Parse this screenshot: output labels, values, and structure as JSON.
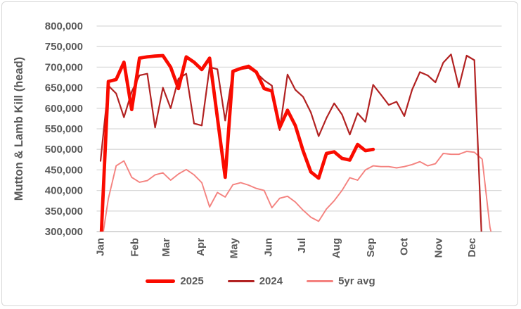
{
  "chart_data": {
    "type": "line",
    "title": "",
    "ylabel": "Mutton & Lamb Kill  (head)",
    "ylim": [
      300000,
      800000
    ],
    "y_tick_step": 50000,
    "y_tick_labels": [
      "800,000",
      "750,000",
      "700,000",
      "650,000",
      "600,000",
      "550,000",
      "500,000",
      "450,000",
      "400,000",
      "350,000",
      "300,000"
    ],
    "x_unit": "week-of-year",
    "x_month_labels": [
      "Jan",
      "Feb",
      "Mar",
      "Apr",
      "May",
      "Jun",
      "Jul",
      "Aug",
      "Sep",
      "Oct",
      "Nov",
      "Dec"
    ],
    "grid": "horizontal-only",
    "legend_position": "bottom",
    "axis_text_color": "#595959",
    "gridline_color": "#d9d9d9",
    "series": [
      {
        "name": "2025",
        "color": "#fa0b00",
        "stroke_width": 4.8,
        "start_week": 1,
        "values": [
          255000,
          665000,
          670000,
          712000,
          597000,
          722000,
          725000,
          727000,
          728000,
          700000,
          648000,
          725000,
          712000,
          694000,
          722000,
          577000,
          432000,
          690000,
          697000,
          702000,
          688000,
          648000,
          642000,
          553000,
          595000,
          558000,
          497000,
          445000,
          430000,
          490000,
          494000,
          478000,
          474000,
          512000,
          497000,
          500000
        ]
      },
      {
        "name": "2024",
        "color": "#b22222",
        "stroke_width": 2.2,
        "start_week": 1,
        "values": [
          472000,
          655000,
          636000,
          578000,
          640000,
          680000,
          684000,
          553000,
          650000,
          600000,
          672000,
          684000,
          563000,
          558000,
          700000,
          695000,
          570000,
          690000,
          695000,
          698000,
          686000,
          668000,
          655000,
          547000,
          682000,
          645000,
          628000,
          590000,
          532000,
          576000,
          612000,
          585000,
          536000,
          588000,
          567000,
          657000,
          633000,
          608000,
          616000,
          581000,
          645000,
          688000,
          680000,
          663000,
          711000,
          731000,
          651000,
          728000,
          717000,
          255000
        ]
      },
      {
        "name": "5yr avg",
        "color": "#f4827f",
        "stroke_width": 1.9,
        "start_week": 1,
        "values": [
          255000,
          380000,
          460000,
          472000,
          432000,
          420000,
          424000,
          438000,
          443000,
          425000,
          440000,
          451000,
          438000,
          419000,
          360000,
          395000,
          384000,
          414000,
          419000,
          413000,
          405000,
          400000,
          358000,
          381000,
          386000,
          372000,
          352000,
          335000,
          325000,
          355000,
          375000,
          400000,
          431000,
          425000,
          450000,
          460000,
          458000,
          458000,
          455000,
          458000,
          463000,
          470000,
          460000,
          465000,
          490000,
          488000,
          488000,
          495000,
          493000,
          476000,
          310000,
          230000
        ]
      }
    ]
  }
}
